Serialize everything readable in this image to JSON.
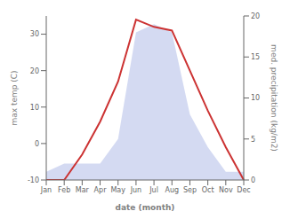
{
  "chart_data": {
    "type": "line",
    "categories": [
      "Jan",
      "Feb",
      "Mar",
      "Apr",
      "May",
      "Jun",
      "Jul",
      "Aug",
      "Sep",
      "Oct",
      "Nov",
      "Dec"
    ],
    "xlabel": "date (month)",
    "ylabel": "max temp (C)",
    "y2label": "med. precipitation (kg/m2)",
    "series": [
      {
        "type": "area",
        "axis": "y2",
        "color": "#b0bce8",
        "values": [
          1.0,
          2.0,
          2.0,
          2.0,
          5.0,
          18.0,
          19.0,
          18.0,
          8.0,
          4.0,
          1.0,
          1.0
        ]
      },
      {
        "type": "line",
        "color": "#cc3333",
        "values": [
          -10,
          -10,
          -3,
          6,
          17,
          34,
          32,
          31,
          20,
          9,
          -1,
          -10
        ]
      }
    ],
    "ylim": [
      -10,
      35
    ],
    "yticks": [
      -10,
      0,
      10,
      20,
      30
    ],
    "y2lim": [
      0,
      20
    ],
    "y2ticks": [
      0,
      5,
      10,
      15,
      20
    ],
    "grid": false
  }
}
